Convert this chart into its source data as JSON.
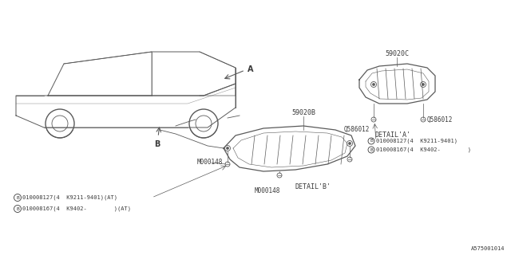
{
  "bg_color": "#ffffff",
  "line_color": "#5a5a5a",
  "text_color": "#3a3a3a",
  "part_numbers": {
    "cover_main": "59020B",
    "cover_detail": "59020C",
    "bolt": "Q586012",
    "nut1": "M000148",
    "nut2": "M000148",
    "ref1_127": "010008127(4  K9211-9401)(AT)",
    "ref1_167": "010008167(4  K9402-        )(AT)",
    "ref2_127": "010008127(4  K9211-9401)",
    "ref2_167": "010008167(4  K9402-        )",
    "detail_a": "DETAIL'A'",
    "detail_b": "DETAIL'B'",
    "part_id": "A575001014",
    "q586012_left": "Q586012"
  },
  "label_a": "A",
  "label_b": "B"
}
